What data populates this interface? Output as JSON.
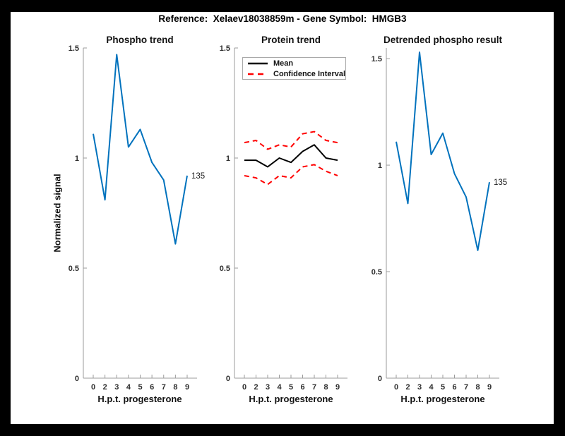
{
  "figure": {
    "title": "Reference:  Xelaev18038859m - Gene Symbol:  HMGB3"
  },
  "colors": {
    "line_blue": "#0072BD",
    "ci_red": "#FF0000",
    "mean_black": "#000000",
    "axis": "#9b9b9b",
    "tick_text": "#2e2e2e",
    "figure_bg": "#ffffff",
    "page_bg": "#000000"
  },
  "legend": {
    "items": [
      {
        "label": "Mean"
      },
      {
        "label": "Confidence Interval"
      }
    ]
  },
  "chart_data": [
    {
      "id": "phospho",
      "type": "line",
      "title": "Phospho trend",
      "xlabel": "H.p.t. progesterone",
      "ylabel": "Normalized signal",
      "categories": [
        "0",
        "2",
        "3",
        "4",
        "5",
        "6",
        "7",
        "8",
        "9"
      ],
      "x_spacing": "equal",
      "ylim": [
        0,
        1.5
      ],
      "yticks": [
        0,
        0.5,
        1,
        1.5
      ],
      "ytick_labels": [
        "0",
        "0.5",
        "1",
        "1.5"
      ],
      "grid": false,
      "series": [
        {
          "name": "Phospho signal",
          "color": "#0072BD",
          "style": "solid",
          "values": [
            1.11,
            0.81,
            1.47,
            1.05,
            1.13,
            0.98,
            0.9,
            0.61,
            0.92
          ]
        }
      ],
      "end_label": "135"
    },
    {
      "id": "protein",
      "type": "line",
      "title": "Protein trend",
      "xlabel": "H.p.t. progesterone",
      "categories": [
        "0",
        "2",
        "3",
        "4",
        "5",
        "6",
        "7",
        "8",
        "9"
      ],
      "x_spacing": "equal",
      "ylim": [
        0,
        1.5
      ],
      "yticks": [
        0,
        0.5,
        1,
        1.5
      ],
      "ytick_labels": [
        "0",
        "0.5",
        "1",
        "1.5"
      ],
      "grid": false,
      "legend_position": "northwest",
      "series": [
        {
          "name": "Confidence Interval upper",
          "color": "#FF0000",
          "style": "dashed",
          "values": [
            1.07,
            1.08,
            1.04,
            1.06,
            1.05,
            1.11,
            1.12,
            1.08,
            1.07
          ]
        },
        {
          "name": "Confidence Interval lower",
          "color": "#FF0000",
          "style": "dashed",
          "values": [
            0.92,
            0.91,
            0.88,
            0.92,
            0.91,
            0.96,
            0.97,
            0.94,
            0.92
          ]
        },
        {
          "name": "Mean",
          "color": "#000000",
          "style": "solid",
          "values": [
            0.99,
            0.99,
            0.96,
            1.0,
            0.98,
            1.03,
            1.06,
            1.0,
            0.99
          ]
        }
      ]
    },
    {
      "id": "detrended",
      "type": "line",
      "title": "Detrended phospho result",
      "xlabel": "H.p.t. progesterone",
      "categories": [
        "0",
        "2",
        "3",
        "4",
        "5",
        "6",
        "7",
        "8",
        "9"
      ],
      "x_spacing": "equal",
      "ylim": [
        0,
        1.55
      ],
      "yticks": [
        0,
        0.5,
        1,
        1.5
      ],
      "ytick_labels": [
        "0",
        "0.5",
        "1",
        "1.5"
      ],
      "grid": false,
      "series": [
        {
          "name": "Detrended phospho signal",
          "color": "#0072BD",
          "style": "solid",
          "values": [
            1.11,
            0.82,
            1.53,
            1.05,
            1.15,
            0.96,
            0.85,
            0.6,
            0.92
          ]
        }
      ],
      "end_label": "135"
    }
  ]
}
